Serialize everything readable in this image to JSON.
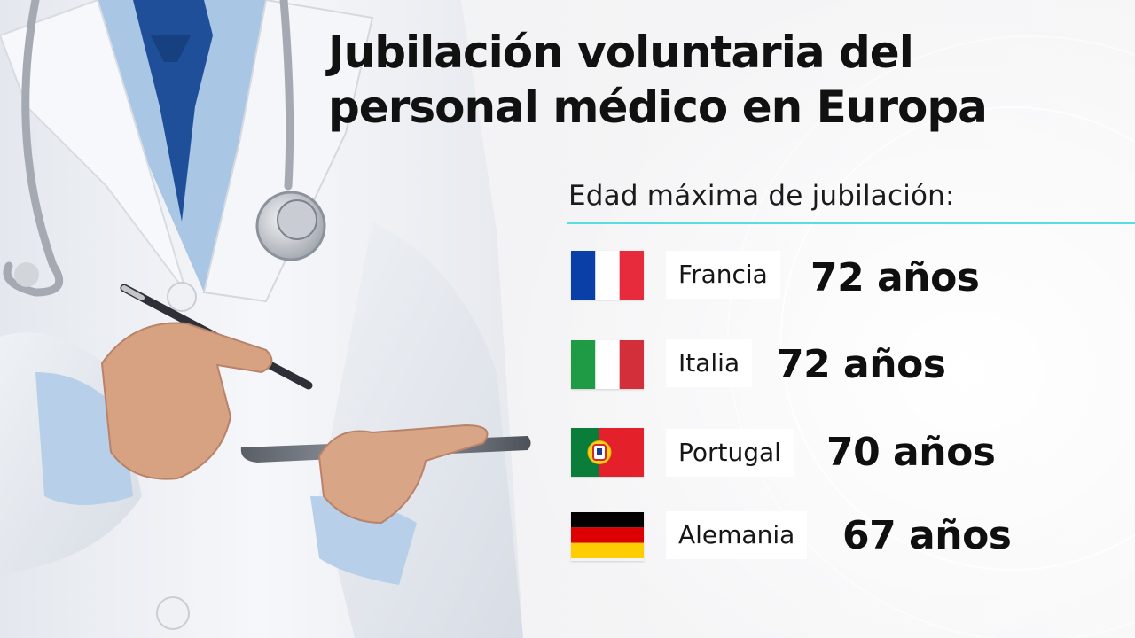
{
  "title": "Jubilación voluntaria del personal médico en Europa",
  "subtitle": "Edad máxima de jubilación:",
  "colors": {
    "accent_line": "#59dde0",
    "coat": "#f1f4f8",
    "shirt": "#a9c6e4",
    "tie": "#1f4f99",
    "skin": "#d7a282"
  },
  "countries": [
    {
      "name": "Francia",
      "age": "72 años",
      "flag": "flag-france-icon"
    },
    {
      "name": "Italia",
      "age": "72 años",
      "flag": "flag-italy-icon"
    },
    {
      "name": "Portugal",
      "age": "70 años",
      "flag": "flag-portugal-icon"
    },
    {
      "name": "Alemania",
      "age": "67 años",
      "flag": "flag-germany-icon"
    }
  ]
}
